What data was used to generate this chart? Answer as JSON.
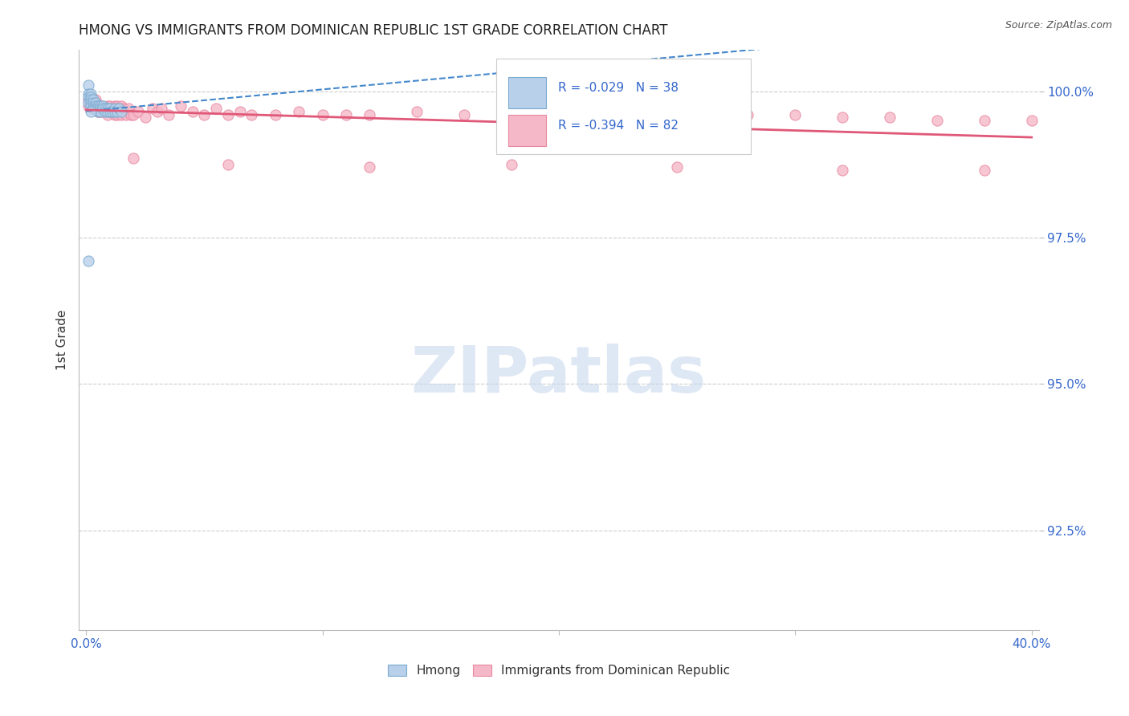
{
  "title": "HMONG VS IMMIGRANTS FROM DOMINICAN REPUBLIC 1ST GRADE CORRELATION CHART",
  "source": "Source: ZipAtlas.com",
  "ylabel": "1st Grade",
  "xlim": [
    -0.003,
    0.403
  ],
  "ylim": [
    0.908,
    1.007
  ],
  "yticks": [
    0.925,
    0.95,
    0.975,
    1.0
  ],
  "ytick_labels": [
    "92.5%",
    "95.0%",
    "97.5%",
    "100.0%"
  ],
  "xticks": [
    0.0,
    0.1,
    0.2,
    0.3,
    0.4
  ],
  "hmong_R": "-0.029",
  "hmong_N": "38",
  "dr_R": "-0.394",
  "dr_N": "82",
  "hmong_fill": "#b8d0ea",
  "hmong_edge": "#7aaad0",
  "dr_fill": "#f5b8c8",
  "dr_edge": "#e888a0",
  "hmong_line": "#4488cc",
  "dr_line": "#e05878",
  "axis_label_color": "#3366cc",
  "title_color": "#222222",
  "watermark_color": "#c8d8ee",
  "bg": "#ffffff",
  "grid_color": "#cccccc",
  "hmong_x": [
    0.001,
    0.001,
    0.001,
    0.001,
    0.002,
    0.002,
    0.002,
    0.002,
    0.002,
    0.003,
    0.003,
    0.003,
    0.003,
    0.004,
    0.004,
    0.004,
    0.005,
    0.005,
    0.005,
    0.006,
    0.006,
    0.006,
    0.007,
    0.007,
    0.008,
    0.008,
    0.009,
    0.009,
    0.01,
    0.01,
    0.011,
    0.012,
    0.012,
    0.013,
    0.014,
    0.015,
    0.001,
    0.002
  ],
  "hmong_y": [
    1.001,
    0.9995,
    0.999,
    0.998,
    0.9995,
    0.999,
    0.9985,
    0.998,
    0.9975,
    0.9985,
    0.998,
    0.9975,
    0.997,
    0.998,
    0.9975,
    0.997,
    0.9975,
    0.997,
    0.9965,
    0.9975,
    0.997,
    0.9965,
    0.9975,
    0.997,
    0.997,
    0.9965,
    0.997,
    0.9965,
    0.997,
    0.9965,
    0.9965,
    0.997,
    0.9965,
    0.9965,
    0.997,
    0.9965,
    0.971,
    0.9965
  ],
  "dr_x": [
    0.001,
    0.001,
    0.002,
    0.002,
    0.002,
    0.003,
    0.003,
    0.003,
    0.003,
    0.004,
    0.004,
    0.004,
    0.004,
    0.005,
    0.005,
    0.005,
    0.005,
    0.006,
    0.006,
    0.006,
    0.007,
    0.007,
    0.007,
    0.008,
    0.008,
    0.009,
    0.009,
    0.01,
    0.01,
    0.011,
    0.011,
    0.012,
    0.012,
    0.013,
    0.013,
    0.014,
    0.015,
    0.015,
    0.016,
    0.017,
    0.018,
    0.019,
    0.02,
    0.022,
    0.025,
    0.028,
    0.03,
    0.032,
    0.035,
    0.04,
    0.045,
    0.05,
    0.055,
    0.06,
    0.065,
    0.07,
    0.08,
    0.09,
    0.1,
    0.11,
    0.12,
    0.14,
    0.16,
    0.18,
    0.2,
    0.22,
    0.24,
    0.26,
    0.28,
    0.3,
    0.32,
    0.34,
    0.36,
    0.38,
    0.4,
    0.02,
    0.06,
    0.12,
    0.18,
    0.25,
    0.32,
    0.38
  ],
  "dr_y": [
    0.9985,
    0.9975,
    0.9985,
    0.998,
    0.9975,
    0.9985,
    0.998,
    0.9975,
    0.997,
    0.9985,
    0.998,
    0.9975,
    0.997,
    0.9975,
    0.9965,
    0.997,
    0.9965,
    0.9975,
    0.997,
    0.9965,
    0.9975,
    0.997,
    0.9965,
    0.997,
    0.9965,
    0.9975,
    0.996,
    0.9975,
    0.9965,
    0.997,
    0.9965,
    0.9975,
    0.996,
    0.9975,
    0.996,
    0.997,
    0.9975,
    0.996,
    0.997,
    0.996,
    0.997,
    0.996,
    0.996,
    0.9965,
    0.9955,
    0.997,
    0.9965,
    0.997,
    0.996,
    0.9975,
    0.9965,
    0.996,
    0.997,
    0.996,
    0.9965,
    0.996,
    0.996,
    0.9965,
    0.996,
    0.996,
    0.996,
    0.9965,
    0.996,
    0.996,
    0.996,
    0.996,
    0.996,
    0.996,
    0.996,
    0.996,
    0.9955,
    0.9955,
    0.995,
    0.995,
    0.995,
    0.9885,
    0.9875,
    0.987,
    0.9875,
    0.987,
    0.9865,
    0.9865
  ]
}
